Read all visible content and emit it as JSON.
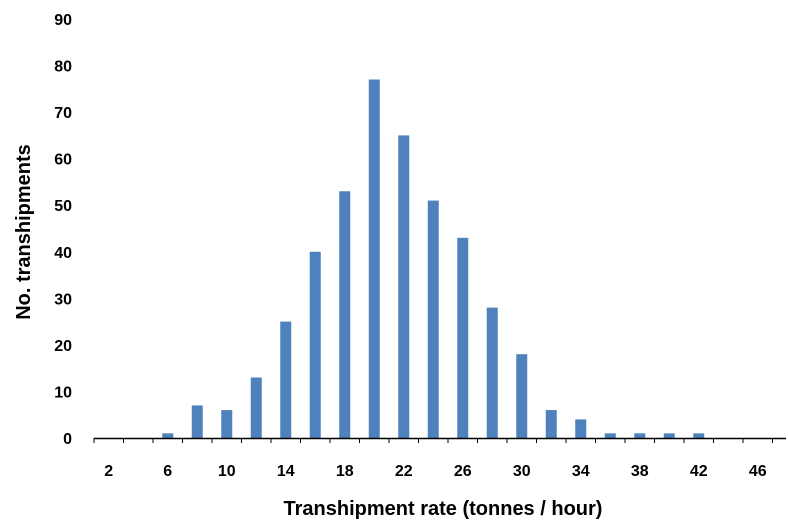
{
  "chart_data": {
    "type": "bar",
    "title": "",
    "xlabel": "Transhipment rate (tonnes / hour)",
    "ylabel": "No. transhipments",
    "ylim": [
      0,
      90
    ],
    "yticks": [
      0,
      10,
      20,
      30,
      40,
      50,
      60,
      70,
      80,
      90
    ],
    "xtick_labels": [
      "2",
      "6",
      "10",
      "14",
      "18",
      "22",
      "26",
      "30",
      "34",
      "38",
      "42",
      "46"
    ],
    "categories": [
      "2",
      "4",
      "6",
      "8",
      "10",
      "12",
      "14",
      "16",
      "18",
      "20",
      "22",
      "24",
      "26",
      "28",
      "30",
      "32",
      "34",
      "36",
      "38",
      "40",
      "42",
      "44",
      "46"
    ],
    "values": [
      0,
      0,
      1,
      7,
      6,
      13,
      25,
      40,
      53,
      77,
      65,
      51,
      43,
      28,
      18,
      6,
      4,
      1,
      1,
      1,
      1,
      0,
      0
    ],
    "bar_color": "#4f81bd",
    "grid": false,
    "legend": "none"
  }
}
